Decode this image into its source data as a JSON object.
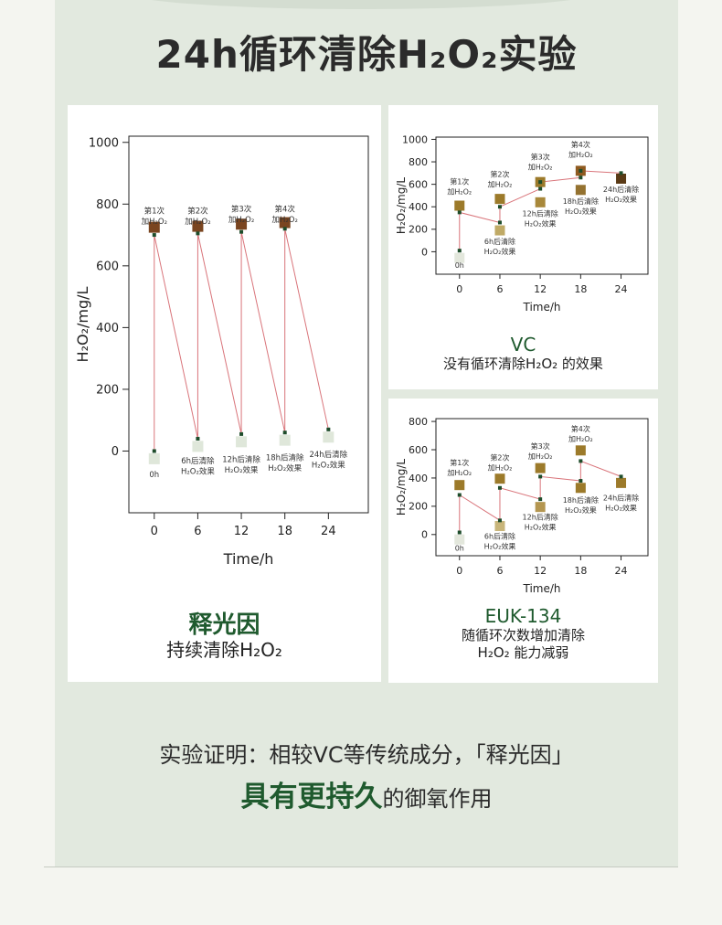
{
  "title": "24h循环清除H₂O₂实验",
  "conclusion": {
    "line1": "实验证明：相较VC等传统成分，「释光因」",
    "highlight": "具有更持久",
    "rest": "的御氧作用"
  },
  "chart_data": [
    {
      "type": "line",
      "id": "left",
      "name": "释光因",
      "description": "持续清除H₂O₂",
      "xlabel": "Time/h",
      "ylabel": "H₂O₂/mg/L",
      "xticks": [
        0,
        6,
        12,
        18,
        24
      ],
      "yticks": [
        0,
        200,
        400,
        600,
        800,
        1000
      ],
      "xlim": [
        -3.5,
        29.5
      ],
      "ylim": [
        -200,
        1020
      ],
      "series": [
        {
          "points": [
            [
              0,
              0
            ],
            [
              0,
              700
            ],
            [
              6,
              40
            ],
            [
              6,
              705
            ],
            [
              12,
              55
            ],
            [
              12,
              710
            ],
            [
              18,
              60
            ],
            [
              18,
              720
            ],
            [
              24,
              70
            ]
          ]
        }
      ],
      "markers": [
        {
          "x": 0,
          "y": 725,
          "color": "#7a4520"
        },
        {
          "x": 6,
          "y": 728,
          "color": "#7a4520"
        },
        {
          "x": 12,
          "y": 735,
          "color": "#7a4520"
        },
        {
          "x": 18,
          "y": 740,
          "color": "#7a4520"
        },
        {
          "x": 0,
          "y": -25,
          "color": "#dfe7da"
        },
        {
          "x": 6,
          "y": 15,
          "color": "#dfe7da"
        },
        {
          "x": 12,
          "y": 30,
          "color": "#dfe7da"
        },
        {
          "x": 18,
          "y": 35,
          "color": "#dfe7da"
        },
        {
          "x": 24,
          "y": 45,
          "color": "#dfe7da"
        }
      ],
      "annotations": [
        {
          "x": 0,
          "y": 770,
          "lines": [
            "第1次",
            "加H₂O₂"
          ]
        },
        {
          "x": 6,
          "y": 770,
          "lines": [
            "第2次",
            "加H₂O₂"
          ]
        },
        {
          "x": 12,
          "y": 775,
          "lines": [
            "第3次",
            "加H₂O₂"
          ]
        },
        {
          "x": 18,
          "y": 775,
          "lines": [
            "第4次",
            "加H₂O₂"
          ]
        },
        {
          "x": 0,
          "y": -85,
          "lines": [
            "0h"
          ]
        },
        {
          "x": 6,
          "y": -40,
          "lines": [
            "6h后清除",
            "H₂O₂效果"
          ]
        },
        {
          "x": 12,
          "y": -35,
          "lines": [
            "12h后清除",
            "H₂O₂效果"
          ]
        },
        {
          "x": 18,
          "y": -30,
          "lines": [
            "18h后清除",
            "H₂O₂效果"
          ]
        },
        {
          "x": 24,
          "y": -20,
          "lines": [
            "24h后清除",
            "H₂O₂效果"
          ]
        }
      ]
    },
    {
      "type": "line",
      "id": "vc",
      "name": "VC",
      "description": "没有循环清除H₂O₂ 的效果",
      "xlabel": "Time/h",
      "ylabel": "H₂O₂/mg/L",
      "xticks": [
        0,
        6,
        12,
        18,
        24
      ],
      "yticks": [
        0,
        200,
        400,
        600,
        800,
        1000
      ],
      "xlim": [
        -3.5,
        28
      ],
      "ylim": [
        -200,
        1020
      ],
      "series": [
        {
          "points": [
            [
              0,
              10
            ],
            [
              0,
              350
            ],
            [
              6,
              260
            ],
            [
              6,
              400
            ],
            [
              12,
              560
            ],
            [
              12,
              620
            ],
            [
              18,
              660
            ],
            [
              18,
              720
            ],
            [
              24,
              700
            ]
          ]
        }
      ],
      "markers": [
        {
          "x": 0,
          "y": 410,
          "color": "#9c7a2a"
        },
        {
          "x": 6,
          "y": 470,
          "color": "#9c7a2a"
        },
        {
          "x": 12,
          "y": 620,
          "color": "#9c7a2a"
        },
        {
          "x": 18,
          "y": 720,
          "color": "#8f5a20"
        },
        {
          "x": 0,
          "y": -55,
          "color": "#e3e7dc"
        },
        {
          "x": 6,
          "y": 190,
          "color": "#c0aa66"
        },
        {
          "x": 12,
          "y": 440,
          "color": "#a8883a"
        },
        {
          "x": 18,
          "y": 550,
          "color": "#947230"
        },
        {
          "x": 24,
          "y": 650,
          "color": "#5a3a16"
        }
      ],
      "annotations": [
        {
          "x": 0,
          "y": 600,
          "lines": [
            "第1次",
            "加H₂O₂"
          ]
        },
        {
          "x": 6,
          "y": 665,
          "lines": [
            "第2次",
            "加H₂O₂"
          ]
        },
        {
          "x": 12,
          "y": 820,
          "lines": [
            "第3次",
            "加H₂O₂"
          ]
        },
        {
          "x": 18,
          "y": 930,
          "lines": [
            "第4次",
            "加H₂O₂"
          ]
        },
        {
          "x": 0,
          "y": -145,
          "lines": [
            "0h"
          ]
        },
        {
          "x": 6,
          "y": 70,
          "lines": [
            "6h后清除",
            "H₂O₂效果"
          ]
        },
        {
          "x": 12,
          "y": 315,
          "lines": [
            "12h后清除",
            "H₂O₂效果"
          ]
        },
        {
          "x": 18,
          "y": 425,
          "lines": [
            "18h后清除",
            "H₂O₂效果"
          ]
        },
        {
          "x": 24,
          "y": 530,
          "lines": [
            "24h后清除",
            "H₂O₂效果"
          ]
        }
      ]
    },
    {
      "type": "line",
      "id": "euk",
      "name": "EUK-134",
      "description": [
        "随循环次数增加清除",
        "H₂O₂ 能力减弱"
      ],
      "xlabel": "Time/h",
      "ylabel": "H₂O₂/mg/L",
      "xticks": [
        0,
        6,
        12,
        18,
        24
      ],
      "yticks": [
        0,
        200,
        400,
        600,
        800
      ],
      "xlim": [
        -3.5,
        28
      ],
      "ylim": [
        -150,
        820
      ],
      "series": [
        {
          "points": [
            [
              0,
              15
            ],
            [
              0,
              280
            ],
            [
              6,
              100
            ],
            [
              6,
              330
            ],
            [
              12,
              250
            ],
            [
              12,
              410
            ],
            [
              18,
              380
            ],
            [
              18,
              520
            ],
            [
              24,
              410
            ]
          ]
        }
      ],
      "markers": [
        {
          "x": 0,
          "y": 350,
          "color": "#9c7a2a"
        },
        {
          "x": 6,
          "y": 395,
          "color": "#9c7a2a"
        },
        {
          "x": 12,
          "y": 470,
          "color": "#9c7a2a"
        },
        {
          "x": 18,
          "y": 595,
          "color": "#9c7a2a"
        },
        {
          "x": 0,
          "y": -35,
          "color": "#e3e7dc"
        },
        {
          "x": 6,
          "y": 60,
          "color": "#c8b57a"
        },
        {
          "x": 12,
          "y": 195,
          "color": "#b49650"
        },
        {
          "x": 18,
          "y": 330,
          "color": "#9c7a2a"
        },
        {
          "x": 24,
          "y": 365,
          "color": "#9c7a2a"
        }
      ],
      "annotations": [
        {
          "x": 0,
          "y": 490,
          "lines": [
            "第1次",
            "加H₂O₂"
          ]
        },
        {
          "x": 6,
          "y": 525,
          "lines": [
            "第2次",
            "加H₂O₂"
          ]
        },
        {
          "x": 12,
          "y": 605,
          "lines": [
            "第3次",
            "加H₂O₂"
          ]
        },
        {
          "x": 18,
          "y": 730,
          "lines": [
            "第4次",
            "加H₂O₂"
          ]
        },
        {
          "x": 0,
          "y": -115,
          "lines": [
            "0h"
          ]
        },
        {
          "x": 6,
          "y": -30,
          "lines": [
            "6h后清除",
            "H₂O₂效果"
          ]
        },
        {
          "x": 12,
          "y": 105,
          "lines": [
            "12h后清除",
            "H₂O₂效果"
          ]
        },
        {
          "x": 18,
          "y": 225,
          "lines": [
            "18h后清除",
            "H₂O₂效果"
          ]
        },
        {
          "x": 24,
          "y": 240,
          "lines": [
            "24h后清除",
            "H₂O₂效果"
          ]
        }
      ]
    }
  ]
}
